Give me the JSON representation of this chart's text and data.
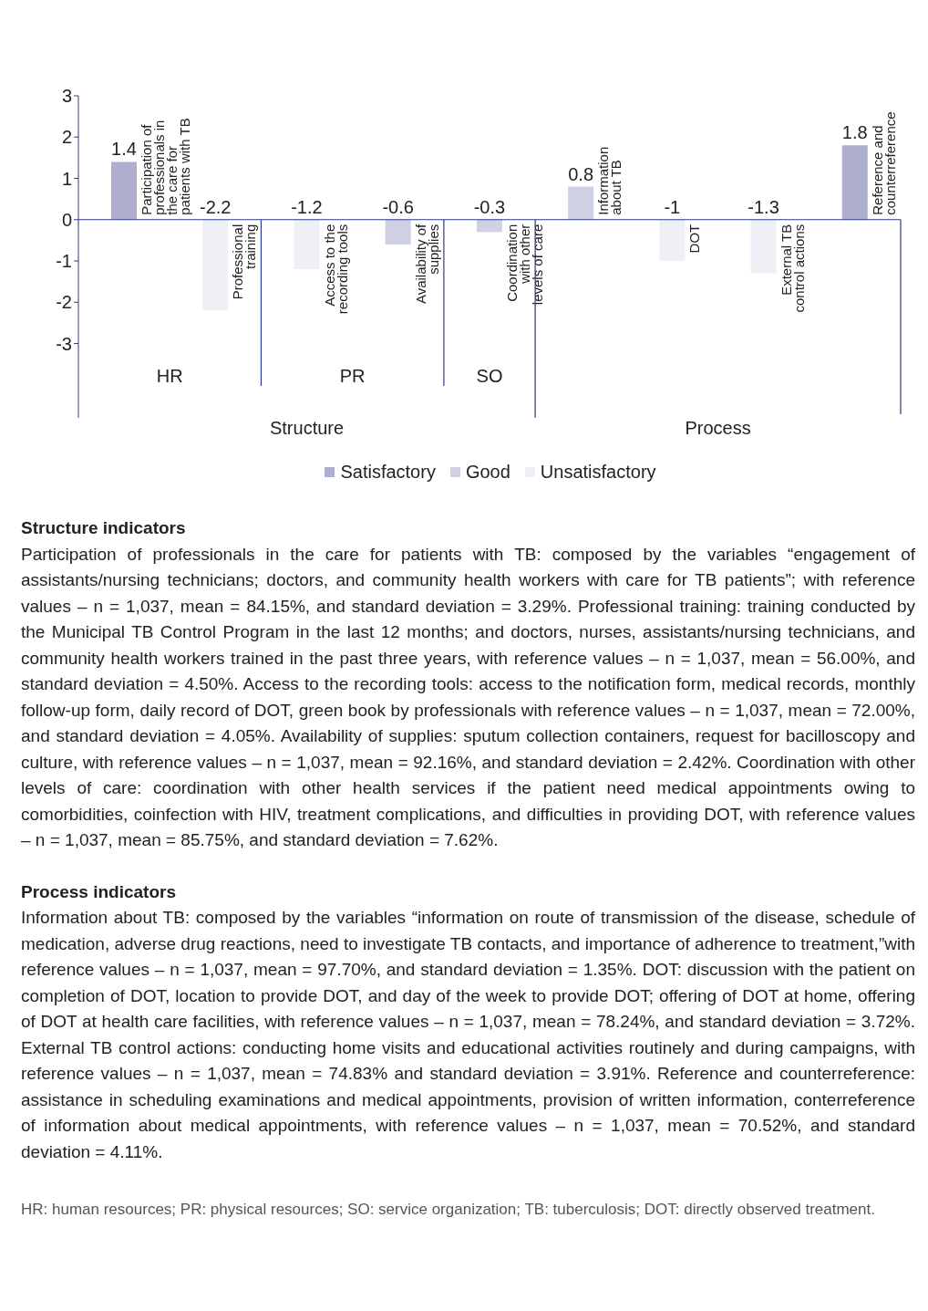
{
  "chart_data": {
    "type": "bar",
    "categories": [
      "Participation of professionals in the care for patients with TB",
      "Professional training",
      "Access to the recording tools",
      "Availability of supplies",
      "Coordination with other levels of care",
      "Information about TB",
      "DOT",
      "External TB control actions",
      "Reference and counterreference"
    ],
    "series": [
      {
        "name": "Satisfactory",
        "color": "#aeaecf",
        "values": [
          1.4,
          null,
          null,
          null,
          null,
          null,
          null,
          null,
          1.8
        ]
      },
      {
        "name": "Good",
        "color": "#d0d0e4",
        "values": [
          null,
          null,
          null,
          -0.6,
          -0.3,
          0.8,
          null,
          null,
          null
        ]
      },
      {
        "name": "Unsatisfactory",
        "color": "#efeff6",
        "values": [
          null,
          -2.2,
          -1.2,
          null,
          null,
          null,
          -1,
          -1.3,
          null
        ]
      }
    ],
    "stacked": true,
    "ylim": [
      -4.8,
      3
    ],
    "yticks": [
      -3,
      -2,
      -1,
      0,
      1,
      2,
      3
    ],
    "data_labels": true,
    "grid": false,
    "legend": "bottom",
    "annotations": [
      "HR",
      "PR",
      "SO",
      "Structure",
      "Process",
      "Structure indicators",
      "Participation of professionals in the care for patients with TB: composed by the variables “engagement of assistants/nursing technicians; doctors, and community health workers with care for TB patients”; with reference values – n = 1,037, mean = 84.15%, and standard deviation = 3.29%. Professional training: training conducted by the Municipal TB Control Program in the last 12 months; and doctors, nurses, assistants/nursing technicians, and community health workers trained in the past three years, with reference values – n = 1,037, mean = 56.00%, and standard deviation = 4.50%. Access to the recording tools: access to the notification form, medical records, monthly follow-up form, daily record of DOT, green book by professionals with reference values – n = 1,037, mean = 72.00%, and standard deviation = 4.05%. Availability of supplies: sputum collection containers, request for bacilloscopy and culture, with reference values – n = 1,037, mean = 92.16%, and standard deviation = 2.42%. Coordination with other levels of care: coordination with other health services if the patient need medical appointments owing to comorbidities, coinfection with HIV, treatment complications, and difficulties in providing DOT, with reference values – n = 1,037, mean = 85.75%, and standard deviation = 7.62%.",
      "Process indicators",
      "Information about TB: composed by the variables “information on route of transmission of the disease, schedule of medication, adverse drug reactions, need to investigate TB contacts, and importance of adherence to treatment,”with reference values – n = 1,037, mean = 97.70%, and standard deviation = 1.35%. DOT: discussion with the patient on completion of DOT, location to provide DOT, and day of the week to provide DOT; offering of DOT at home, offering of DOT at health care facilities, with reference values – n = 1,037, mean = 78.24%, and standard deviation = 3.72%. External TB control actions: conducting home visits and educational activities routinely and during campaigns, with reference values – n = 1,037, mean = 74.83% and standard deviation = 3.91%. Reference and counterreference: assistance in scheduling examinations and medical appointments, provision of written information, conterreference of information about medical appointments, with reference values – n = 1,037, mean = 70.52%, and standard deviation = 4.11%.",
      "HR: human resources; PR: physical resources; SO: service organization; TB: tuberculosis; DOT: directly observed treatment."
    ]
  }
}
